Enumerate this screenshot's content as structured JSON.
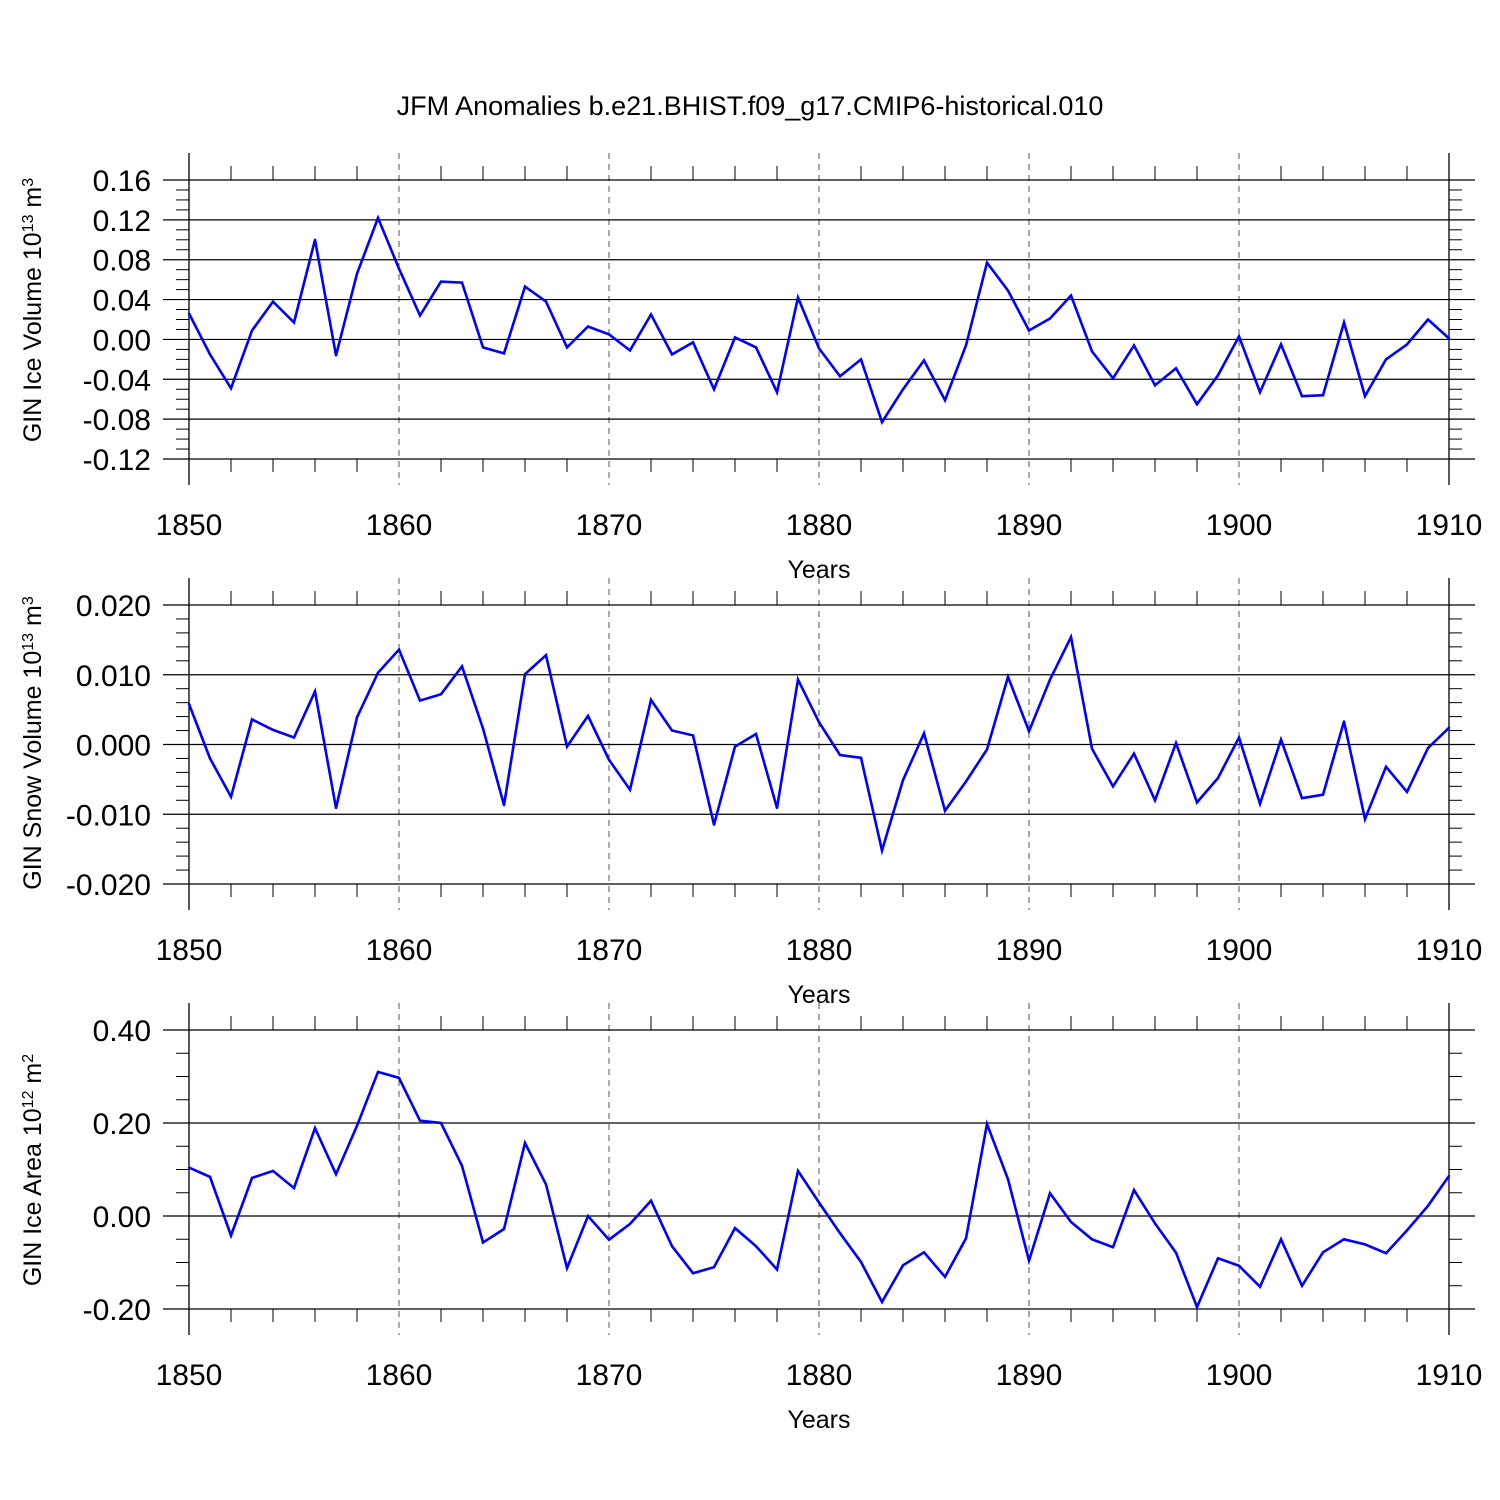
{
  "title": "JFM Anomalies b.e21.BHIST.f09_g17.CMIP6-historical.010",
  "chart_data": [
    {
      "type": "line",
      "ylabel": "GIN Ice Volume 10",
      "ylabel_exp": "13",
      "ylabel_unit": " m",
      "ylabel_unit_exp": "3",
      "xlabel": "Years",
      "xlim": [
        1850,
        1910
      ],
      "ylim": [
        -0.12,
        0.16
      ],
      "yticks": [
        -0.12,
        -0.08,
        -0.04,
        0.0,
        0.04,
        0.08,
        0.12,
        0.16
      ],
      "ytick_labels": [
        "-0.12",
        "-0.08",
        "-0.04",
        "0.00",
        "0.04",
        "0.08",
        "0.12",
        "0.16"
      ],
      "y_minor": 0.01,
      "xticks": [
        1850,
        1860,
        1870,
        1880,
        1890,
        1900,
        1910
      ],
      "xtick_labels": [
        "1850",
        "1860",
        "1870",
        "1880",
        "1890",
        "1900",
        "1910"
      ],
      "grid_x": true,
      "color": "#0000ff",
      "x": [
        1850,
        1851,
        1852,
        1853,
        1854,
        1855,
        1856,
        1857,
        1858,
        1859,
        1860,
        1861,
        1862,
        1863,
        1864,
        1865,
        1866,
        1867,
        1868,
        1869,
        1870,
        1871,
        1872,
        1873,
        1874,
        1875,
        1876,
        1877,
        1878,
        1879,
        1880,
        1881,
        1882,
        1883,
        1884,
        1885,
        1886,
        1887,
        1888,
        1889,
        1890,
        1891,
        1892,
        1893,
        1894,
        1895,
        1896,
        1897,
        1898,
        1899,
        1900,
        1901,
        1902,
        1903,
        1904,
        1905,
        1906,
        1907,
        1908,
        1909,
        1910
      ],
      "values": [
        0.026,
        -0.015,
        -0.049,
        0.009,
        0.038,
        0.017,
        0.1,
        -0.016,
        0.066,
        0.122,
        0.071,
        0.024,
        0.058,
        0.057,
        -0.008,
        -0.014,
        0.053,
        0.038,
        -0.008,
        0.013,
        0.005,
        -0.011,
        0.025,
        -0.015,
        -0.003,
        -0.05,
        0.002,
        -0.008,
        -0.053,
        0.042,
        -0.009,
        -0.037,
        -0.02,
        -0.083,
        -0.05,
        -0.021,
        -0.061,
        -0.006,
        0.077,
        0.049,
        0.009,
        0.021,
        0.044,
        -0.012,
        -0.039,
        -0.006,
        -0.046,
        -0.029,
        -0.065,
        -0.036,
        0.003,
        -0.053,
        -0.005,
        -0.057,
        -0.056,
        0.017,
        -0.057,
        -0.02,
        -0.005,
        0.02,
        0.001
      ]
    },
    {
      "type": "line",
      "ylabel": "GIN Snow Volume 10",
      "ylabel_exp": "13",
      "ylabel_unit": " m",
      "ylabel_unit_exp": "3",
      "xlabel": "Years",
      "xlim": [
        1850,
        1910
      ],
      "ylim": [
        -0.02,
        0.02
      ],
      "yticks": [
        -0.02,
        -0.01,
        0.0,
        0.01,
        0.02
      ],
      "ytick_labels": [
        "-0.020",
        "-0.010",
        "0.000",
        "0.010",
        "0.020"
      ],
      "y_minor": 0.002,
      "xticks": [
        1850,
        1860,
        1870,
        1880,
        1890,
        1900,
        1910
      ],
      "xtick_labels": [
        "1850",
        "1860",
        "1870",
        "1880",
        "1890",
        "1900",
        "1910"
      ],
      "grid_x": true,
      "color": "#0000ff",
      "x": [
        1850,
        1851,
        1852,
        1853,
        1854,
        1855,
        1856,
        1857,
        1858,
        1859,
        1860,
        1861,
        1862,
        1863,
        1864,
        1865,
        1866,
        1867,
        1868,
        1869,
        1870,
        1871,
        1872,
        1873,
        1874,
        1875,
        1876,
        1877,
        1878,
        1879,
        1880,
        1881,
        1882,
        1883,
        1884,
        1885,
        1886,
        1887,
        1888,
        1889,
        1890,
        1891,
        1892,
        1893,
        1894,
        1895,
        1896,
        1897,
        1898,
        1899,
        1900,
        1901,
        1902,
        1903,
        1904,
        1905,
        1906,
        1907,
        1908,
        1909,
        1910
      ],
      "values": [
        0.0058,
        -0.002,
        -0.0075,
        0.0036,
        0.0021,
        0.001,
        0.0076,
        -0.0091,
        0.0039,
        0.0103,
        0.0136,
        0.0063,
        0.0072,
        0.0112,
        0.0023,
        -0.0087,
        0.0101,
        0.0128,
        -0.0003,
        0.0041,
        -0.0022,
        -0.0065,
        0.0064,
        0.002,
        0.0013,
        -0.0115,
        -0.0003,
        0.0015,
        -0.0091,
        0.0093,
        0.0032,
        -0.0015,
        -0.0019,
        -0.0152,
        -0.0051,
        0.0016,
        -0.0095,
        -0.0053,
        -0.0007,
        0.0097,
        0.0019,
        0.0093,
        0.0154,
        -0.0006,
        -0.006,
        -0.0013,
        -0.008,
        0.0002,
        -0.0083,
        -0.0048,
        0.001,
        -0.0085,
        0.0007,
        -0.0077,
        -0.0072,
        0.0033,
        -0.0107,
        -0.0032,
        -0.0068,
        -0.0005,
        0.0024
      ]
    },
    {
      "type": "line",
      "ylabel": "GIN Ice Area 10",
      "ylabel_exp": "12",
      "ylabel_unit": " m",
      "ylabel_unit_exp": "2",
      "xlabel": "Years",
      "xlim": [
        1850,
        1910
      ],
      "ylim": [
        -0.2,
        0.4
      ],
      "yticks": [
        -0.2,
        0.0,
        0.2,
        0.4
      ],
      "ytick_labels": [
        "-0.20",
        "0.00",
        "0.20",
        "0.40"
      ],
      "y_minor": 0.05,
      "xticks": [
        1850,
        1860,
        1870,
        1880,
        1890,
        1900,
        1910
      ],
      "xtick_labels": [
        "1850",
        "1860",
        "1870",
        "1880",
        "1890",
        "1900",
        "1910"
      ],
      "grid_x": true,
      "color": "#0000ff",
      "x": [
        1850,
        1851,
        1852,
        1853,
        1854,
        1855,
        1856,
        1857,
        1858,
        1859,
        1860,
        1861,
        1862,
        1863,
        1864,
        1865,
        1866,
        1867,
        1868,
        1869,
        1870,
        1871,
        1872,
        1873,
        1874,
        1875,
        1876,
        1877,
        1878,
        1879,
        1880,
        1881,
        1882,
        1883,
        1884,
        1885,
        1886,
        1887,
        1888,
        1889,
        1890,
        1891,
        1892,
        1893,
        1894,
        1895,
        1896,
        1897,
        1898,
        1899,
        1900,
        1901,
        1902,
        1903,
        1904,
        1905,
        1906,
        1907,
        1908,
        1909,
        1910
      ],
      "values": [
        0.104,
        0.084,
        -0.042,
        0.082,
        0.097,
        0.06,
        0.189,
        0.09,
        0.194,
        0.31,
        0.297,
        0.205,
        0.2,
        0.108,
        -0.057,
        -0.028,
        0.157,
        0.068,
        -0.112,
        0.0,
        -0.051,
        -0.017,
        0.033,
        -0.065,
        -0.123,
        -0.11,
        -0.026,
        -0.065,
        -0.115,
        0.097,
        0.029,
        -0.037,
        -0.099,
        -0.185,
        -0.106,
        -0.078,
        -0.131,
        -0.048,
        0.198,
        0.079,
        -0.096,
        0.049,
        -0.013,
        -0.05,
        -0.067,
        0.056,
        -0.016,
        -0.079,
        -0.196,
        -0.091,
        -0.107,
        -0.152,
        -0.05,
        -0.15,
        -0.078,
        -0.05,
        -0.061,
        -0.08,
        -0.031,
        0.022,
        0.086
      ]
    }
  ]
}
